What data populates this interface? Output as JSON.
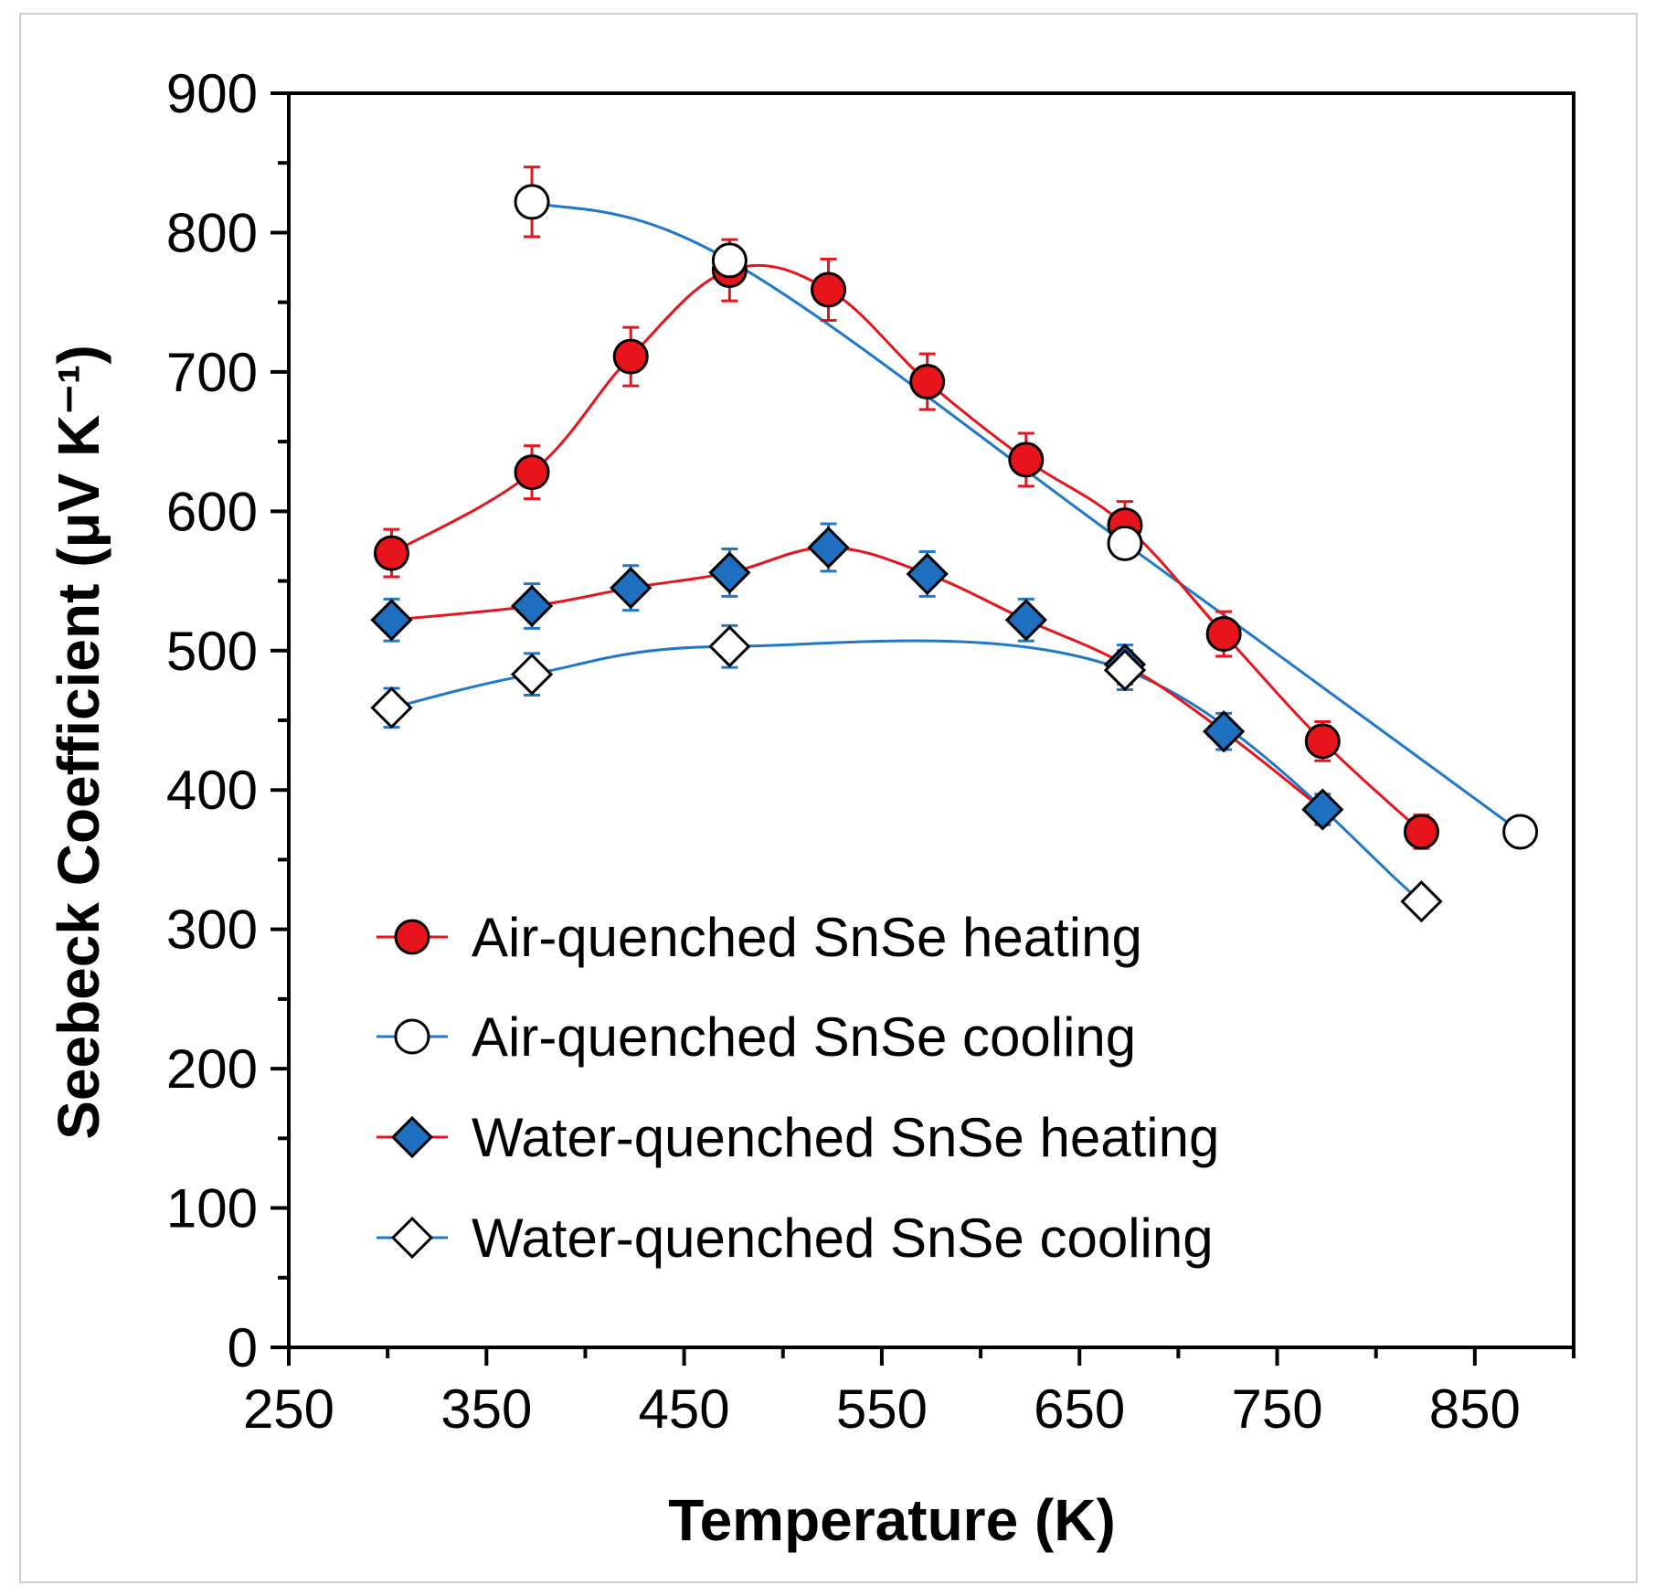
{
  "chart_data": {
    "type": "line",
    "xlabel": "Temperature (K)",
    "ylabel": "Seebeck Coefficient (μV K⁻¹)",
    "xlim": [
      250,
      900
    ],
    "ylim": [
      0,
      900
    ],
    "xticks": [
      250,
      350,
      450,
      550,
      650,
      750,
      850
    ],
    "yticks": [
      0,
      100,
      200,
      300,
      400,
      500,
      600,
      700,
      800,
      900
    ],
    "grid": false,
    "legend_position": "bottom-left",
    "series": [
      {
        "name": "Air-quenched SnSe heating",
        "marker": "circle",
        "marker_fill": "#e8141b",
        "line_color": "#e8141b",
        "error_color": "#e8141b",
        "x": [
          302,
          373,
          423,
          473,
          523,
          573,
          623,
          673,
          723,
          773,
          823
        ],
        "y": [
          570,
          628,
          711,
          773,
          759,
          693,
          637,
          590,
          512,
          435,
          370
        ],
        "err": [
          17,
          19,
          21,
          22,
          22,
          20,
          19,
          17,
          16,
          14,
          12
        ]
      },
      {
        "name": "Air-quenched SnSe cooling",
        "marker": "circle",
        "marker_fill": "#ffffff",
        "line_color": "#1f78c8",
        "error_color": "#e8141b",
        "x": [
          373,
          473,
          673,
          873
        ],
        "y": [
          822,
          780,
          577,
          370
        ],
        "err": [
          25,
          0,
          0,
          0
        ]
      },
      {
        "name": "Water-quenched SnSe heating",
        "marker": "diamond",
        "marker_fill": "#1f6fc0",
        "line_color": "#e8141b",
        "error_color": "#1f78c8",
        "x": [
          302,
          373,
          423,
          473,
          523,
          573,
          623,
          673,
          723,
          773
        ],
        "y": [
          522,
          532,
          545,
          556,
          574,
          555,
          522,
          490,
          442,
          386
        ],
        "err": [
          15,
          16,
          16,
          17,
          17,
          16,
          15,
          14,
          13,
          11
        ]
      },
      {
        "name": "Water-quenched SnSe cooling",
        "marker": "diamond",
        "marker_fill": "#ffffff",
        "line_color": "#1f78c8",
        "error_color": "#1f78c8",
        "x": [
          302,
          373,
          473,
          673,
          823
        ],
        "y": [
          459,
          483,
          503,
          486,
          320
        ],
        "err": [
          14,
          15,
          15,
          14,
          0
        ]
      }
    ]
  }
}
